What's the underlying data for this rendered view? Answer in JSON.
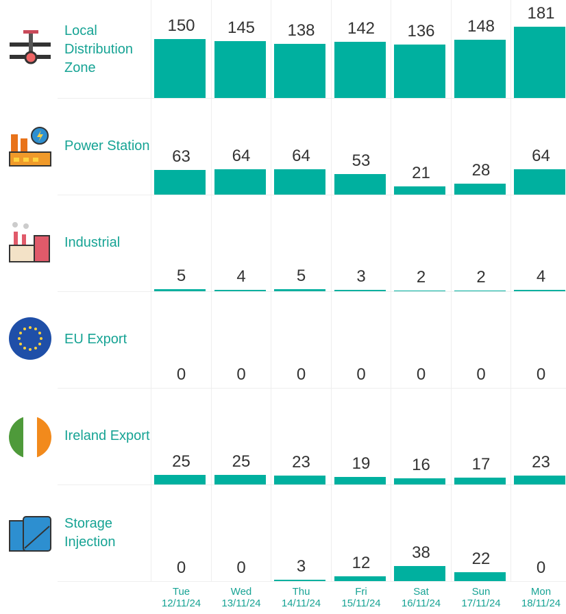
{
  "chart_data": {
    "type": "bar",
    "categories": [
      "Tue\n12/11/24",
      "Wed\n13/11/24",
      "Thu\n14/11/24",
      "Fri\n15/11/24",
      "Sat\n16/11/24",
      "Sun\n17/11/24",
      "Mon\n18/11/24"
    ],
    "series": [
      {
        "name": "Local Distribution Zone",
        "color": "#00b09f",
        "values": [
          150,
          145,
          138,
          142,
          136,
          148,
          181
        ]
      },
      {
        "name": "Power Station",
        "color": "#00b09f",
        "values": [
          63,
          64,
          64,
          53,
          21,
          28,
          64
        ]
      },
      {
        "name": "Industrial",
        "color": "#00b09f",
        "values": [
          5,
          4,
          5,
          3,
          2,
          2,
          4
        ]
      },
      {
        "name": "EU Export",
        "color": "#00b09f",
        "values": [
          0,
          0,
          0,
          0,
          0,
          0,
          0
        ]
      },
      {
        "name": "Ireland Export",
        "color": "#00b09f",
        "values": [
          25,
          25,
          23,
          19,
          16,
          17,
          23
        ]
      },
      {
        "name": "Storage Injection",
        "color": "#00b09f",
        "values": [
          0,
          0,
          3,
          12,
          38,
          22,
          0
        ]
      }
    ]
  }
}
